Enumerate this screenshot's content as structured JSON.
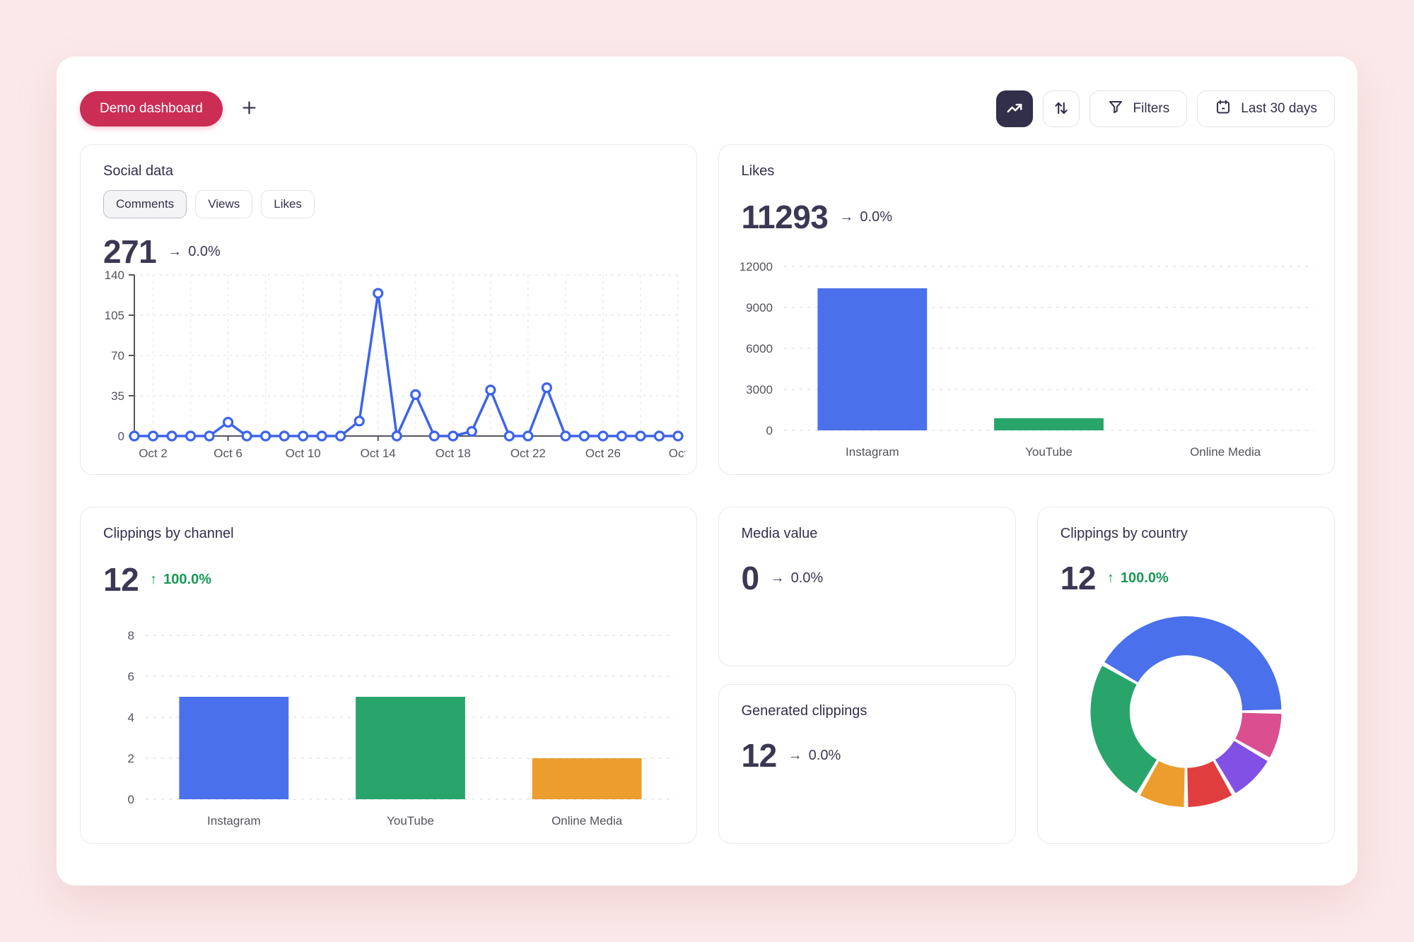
{
  "header": {
    "dashboard_tab": "Demo dashboard",
    "add_tab": "+",
    "filters_label": "Filters",
    "date_range_label": "Last 30 days"
  },
  "colors": {
    "page_bg": "#FBE9E9",
    "accent": "#CB2D55",
    "dark_button": "#322F48",
    "positive": "#169A52",
    "chart_blue": "#4A71EB",
    "chart_green": "#29A56B",
    "chart_orange": "#EC9D2E",
    "donut_pink": "#DB4E90",
    "donut_purple": "#8150E5",
    "donut_red": "#E03E3E"
  },
  "cards": {
    "social_data": {
      "title": "Social data",
      "tabs": [
        "Comments",
        "Views",
        "Likes"
      ],
      "active_tab": "Comments",
      "value": "271",
      "trend": {
        "arrow": "→",
        "value": "0.0%",
        "direction": "flat"
      }
    },
    "likes": {
      "title": "Likes",
      "value": "11293",
      "trend": {
        "arrow": "→",
        "value": "0.0%",
        "direction": "flat"
      }
    },
    "clippings_by_channel": {
      "title": "Clippings by channel",
      "value": "12",
      "trend": {
        "arrow": "↑",
        "value": "100.0%",
        "direction": "up"
      }
    },
    "media_value": {
      "title": "Media value",
      "value": "0",
      "trend": {
        "arrow": "→",
        "value": "0.0%",
        "direction": "flat"
      }
    },
    "generated_clippings": {
      "title": "Generated clippings",
      "value": "12",
      "trend": {
        "arrow": "→",
        "value": "0.0%",
        "direction": "flat"
      }
    },
    "clippings_by_country": {
      "title": "Clippings by country",
      "value": "12",
      "trend": {
        "arrow": "↑",
        "value": "100.0%",
        "direction": "up"
      }
    }
  },
  "chart_data": [
    {
      "id": "social-comments-daily",
      "type": "line",
      "values": [
        0,
        0,
        0,
        0,
        0,
        12,
        0,
        0,
        0,
        0,
        0,
        0,
        13,
        124,
        0,
        36,
        0,
        0,
        4,
        40,
        0,
        0,
        42,
        0,
        0,
        0,
        0,
        0,
        0,
        0
      ],
      "x_tick_indices": [
        1,
        5,
        9,
        13,
        17,
        21,
        25,
        29
      ],
      "x_tick_labels": [
        "Oct 2",
        "Oct 6",
        "Oct 10",
        "Oct 14",
        "Oct 18",
        "Oct 22",
        "Oct 26",
        "Oct"
      ],
      "yticks": [
        0,
        35,
        70,
        105,
        140
      ],
      "ylim": [
        0,
        140
      ],
      "color": "#3D63ED",
      "grid": "dashed",
      "legend": "none"
    },
    {
      "id": "likes-by-channel",
      "type": "bar",
      "categories": [
        "Instagram",
        "YouTube",
        "Online Media"
      ],
      "values": [
        10400,
        893,
        0
      ],
      "yticks": [
        0,
        3000,
        6000,
        9000,
        12000
      ],
      "ylim": [
        0,
        12000
      ],
      "colors": [
        "#4A71EB",
        "#29A56B",
        "#EC9D2E"
      ],
      "grid": "dashed",
      "legend": "none"
    },
    {
      "id": "clippings-by-channel",
      "type": "bar",
      "categories": [
        "Instagram",
        "YouTube",
        "Online Media"
      ],
      "values": [
        5,
        5,
        2
      ],
      "yticks": [
        0,
        2,
        4,
        6,
        8
      ],
      "ylim": [
        0,
        8
      ],
      "colors": [
        "#4A71EB",
        "#29A56B",
        "#EC9D2E"
      ],
      "grid": "dashed",
      "legend": "none"
    },
    {
      "id": "clippings-by-country",
      "type": "pie",
      "subtype": "donut",
      "values": [
        5,
        1,
        1,
        1,
        1,
        3
      ],
      "colors": [
        "#4A71EB",
        "#DB4E90",
        "#8150E5",
        "#E03E3E",
        "#EC9D2E",
        "#29A56B"
      ],
      "start_angle": 300,
      "total": 12,
      "legend": "none"
    }
  ]
}
